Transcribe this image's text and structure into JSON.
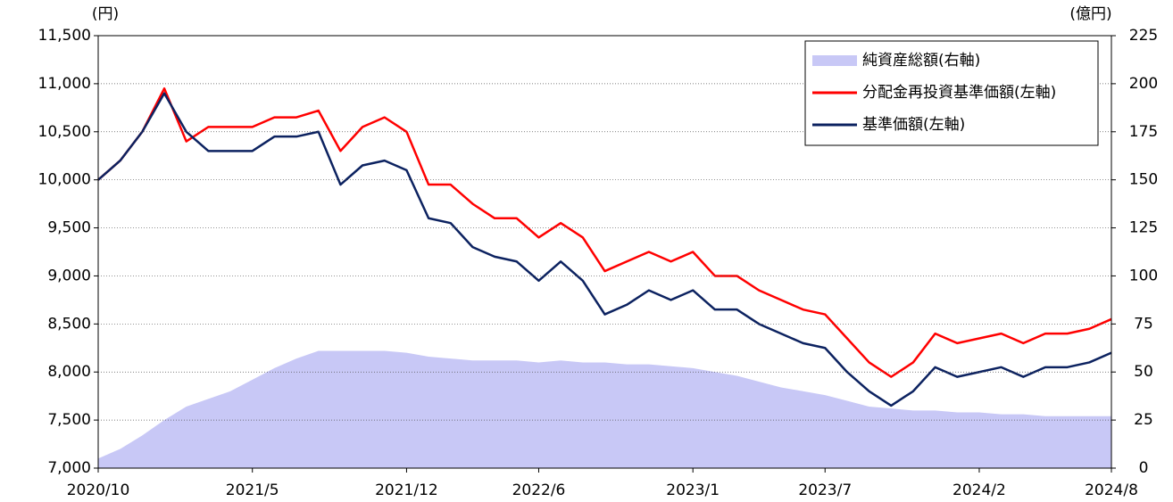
{
  "chart_data": {
    "type": "line",
    "y_unit_label": "(円)",
    "y2_unit_label": "(億円)",
    "x": [
      "2020/10",
      "2020/11",
      "2020/12",
      "2021/1",
      "2021/2",
      "2021/3",
      "2021/4",
      "2021/5",
      "2021/6",
      "2021/7",
      "2021/8",
      "2021/9",
      "2021/10",
      "2021/11",
      "2021/12",
      "2022/1",
      "2022/2",
      "2022/3",
      "2022/4",
      "2022/5",
      "2022/6",
      "2022/7",
      "2022/8",
      "2022/9",
      "2022/10",
      "2022/11",
      "2022/12",
      "2023/1",
      "2023/2",
      "2023/3",
      "2023/4",
      "2023/5",
      "2023/6",
      "2023/7",
      "2023/8",
      "2023/9",
      "2023/10",
      "2023/11",
      "2023/12",
      "2024/1",
      "2024/2",
      "2024/3",
      "2024/4",
      "2024/5",
      "2024/6",
      "2024/7",
      "2024/8"
    ],
    "xticks": [
      "2020/10",
      "2021/5",
      "2021/12",
      "2022/6",
      "2023/1",
      "2023/7",
      "2024/2",
      "2024/8"
    ],
    "series": [
      {
        "name": "純資産総額(右軸)",
        "color": "#c8c8f6",
        "kind": "area",
        "axis": "y2",
        "values": [
          5,
          10,
          17,
          25,
          32,
          36,
          40,
          46,
          52,
          57,
          61,
          61,
          61,
          61,
          60,
          58,
          57,
          56,
          56,
          56,
          55,
          56,
          55,
          55,
          54,
          54,
          53,
          52,
          50,
          48,
          45,
          42,
          40,
          38,
          35,
          32,
          31,
          30,
          30,
          29,
          29,
          28,
          28,
          27,
          27,
          27,
          27
        ]
      },
      {
        "name": "分配金再投資基準価額(左軸)",
        "color": "#ff0000",
        "kind": "line",
        "values": [
          10000,
          10200,
          10500,
          10950,
          10400,
          10550,
          10550,
          10550,
          10650,
          10650,
          10720,
          10300,
          10550,
          10650,
          10500,
          9950,
          9950,
          9750,
          9600,
          9600,
          9400,
          9550,
          9400,
          9050,
          9150,
          9250,
          9150,
          9250,
          9000,
          9000,
          8850,
          8750,
          8650,
          8600,
          8350,
          8100,
          7950,
          8100,
          8400,
          8300,
          8350,
          8400,
          8300,
          8400,
          8400,
          8450,
          8550
        ]
      },
      {
        "name": "基準価額(左軸)",
        "color": "#0c2260",
        "kind": "line",
        "values": [
          10000,
          10200,
          10500,
          10900,
          10500,
          10300,
          10300,
          10300,
          10450,
          10450,
          10500,
          9950,
          10150,
          10200,
          10100,
          9600,
          9550,
          9300,
          9200,
          9150,
          8950,
          9150,
          8950,
          8600,
          8700,
          8850,
          8750,
          8850,
          8650,
          8650,
          8500,
          8400,
          8300,
          8250,
          8000,
          7800,
          7650,
          7800,
          8050,
          7950,
          8000,
          8050,
          7950,
          8050,
          8050,
          8100,
          8200
        ]
      }
    ],
    "ylim": [
      7000,
      11500
    ],
    "yticks": [
      {
        "value": 7000,
        "label": "7,000"
      },
      {
        "value": 7500,
        "label": "7,500"
      },
      {
        "value": 8000,
        "label": "8,000"
      },
      {
        "value": 8500,
        "label": "8,500"
      },
      {
        "value": 9000,
        "label": "9,000"
      },
      {
        "value": 9500,
        "label": "9,500"
      },
      {
        "value": 10000,
        "label": "10,000"
      },
      {
        "value": 10500,
        "label": "10,500"
      },
      {
        "value": 11000,
        "label": "11,000"
      },
      {
        "value": 11500,
        "label": "11,500"
      }
    ],
    "y2lim": [
      0,
      225
    ],
    "y2ticks": [
      0,
      25,
      50,
      75,
      100,
      125,
      150,
      175,
      200,
      225
    ],
    "grid": true,
    "legend": "top-right"
  }
}
